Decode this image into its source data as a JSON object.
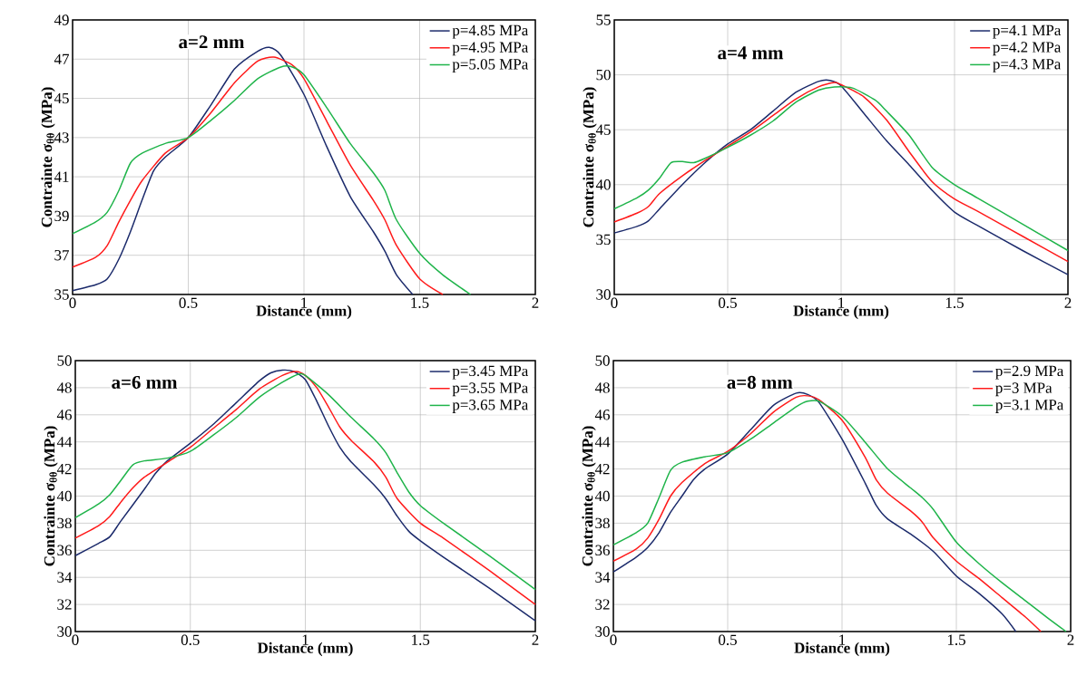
{
  "chart_data": [
    {
      "type": "line",
      "title": "a=2 mm",
      "xlabel": "Distance (mm)",
      "ylabel": "Contrainte σ$_{θθ}$ (MPa)",
      "xlim": [
        0,
        2
      ],
      "ylim": [
        35,
        49
      ],
      "xticks": [
        0,
        0.5,
        1,
        1.5,
        2
      ],
      "yticks": [
        35,
        37,
        39,
        41,
        43,
        45,
        47,
        49
      ],
      "grid": true,
      "legend": "top right",
      "series": [
        {
          "name": "p=4.85 MPa",
          "color": "#1b2a6b",
          "x": [
            0,
            0.1,
            0.15,
            0.2,
            0.25,
            0.3,
            0.35,
            0.4,
            0.5,
            0.6,
            0.7,
            0.8,
            0.85,
            0.9,
            1.0,
            1.1,
            1.2,
            1.3,
            1.35,
            1.4,
            1.47
          ],
          "values": [
            35.2,
            35.5,
            35.8,
            36.8,
            38.2,
            39.8,
            41.3,
            42.0,
            43.0,
            44.7,
            46.5,
            47.4,
            47.6,
            47.2,
            45.2,
            42.5,
            40.0,
            38.2,
            37.2,
            36.0,
            35
          ]
        },
        {
          "name": "p=4.95 MPa",
          "color": "#ff1a1a",
          "x": [
            0,
            0.1,
            0.15,
            0.2,
            0.25,
            0.3,
            0.4,
            0.5,
            0.6,
            0.7,
            0.8,
            0.87,
            0.95,
            1.0,
            1.1,
            1.2,
            1.3,
            1.35,
            1.4,
            1.5,
            1.6
          ],
          "values": [
            36.4,
            36.9,
            37.5,
            38.7,
            39.8,
            40.8,
            42.2,
            43.0,
            44.3,
            45.8,
            46.9,
            47.1,
            46.7,
            46.0,
            43.8,
            41.6,
            39.8,
            38.8,
            37.5,
            35.8,
            35
          ]
        },
        {
          "name": "p=5.05 MPa",
          "color": "#1fb44a",
          "x": [
            0,
            0.1,
            0.15,
            0.2,
            0.25,
            0.3,
            0.4,
            0.5,
            0.6,
            0.7,
            0.8,
            0.9,
            0.95,
            1.0,
            1.1,
            1.2,
            1.3,
            1.35,
            1.4,
            1.5,
            1.6,
            1.72
          ],
          "values": [
            38.1,
            38.7,
            39.2,
            40.3,
            41.7,
            42.2,
            42.7,
            43.0,
            43.9,
            44.9,
            46.0,
            46.6,
            46.6,
            46.2,
            44.5,
            42.7,
            41.2,
            40.3,
            38.8,
            37.1,
            36.0,
            35
          ]
        }
      ]
    },
    {
      "type": "line",
      "title": "a=4 mm",
      "xlabel": "Distance (mm)",
      "ylabel": "Contrainte σ$_{θθ}$ (MPa)",
      "xlim": [
        0,
        2
      ],
      "ylim": [
        30,
        55
      ],
      "xticks": [
        0,
        0.5,
        1,
        1.5,
        2
      ],
      "yticks": [
        30,
        35,
        40,
        45,
        50,
        55
      ],
      "grid": true,
      "legend": "top right",
      "series": [
        {
          "name": "p=4.1 MPa",
          "color": "#1b2a6b",
          "x": [
            0,
            0.1,
            0.15,
            0.2,
            0.3,
            0.4,
            0.5,
            0.6,
            0.7,
            0.8,
            0.9,
            0.95,
            1.0,
            1.1,
            1.2,
            1.3,
            1.4,
            1.5,
            1.6,
            1.8,
            2.0
          ],
          "values": [
            35.6,
            36.2,
            36.7,
            37.8,
            40.0,
            42.0,
            43.7,
            45.0,
            46.7,
            48.4,
            49.4,
            49.5,
            49.0,
            46.5,
            44.0,
            41.8,
            39.5,
            37.5,
            36.3,
            34.0,
            31.8
          ]
        },
        {
          "name": "p=4.2 MPa",
          "color": "#ff1a1a",
          "x": [
            0,
            0.1,
            0.15,
            0.2,
            0.3,
            0.4,
            0.5,
            0.6,
            0.7,
            0.8,
            0.9,
            0.97,
            1.0,
            1.1,
            1.2,
            1.3,
            1.4,
            1.5,
            1.6,
            1.8,
            2.0
          ],
          "values": [
            36.6,
            37.4,
            38.0,
            39.2,
            40.8,
            42.2,
            43.5,
            44.8,
            46.3,
            47.8,
            48.9,
            49.3,
            49.1,
            48.0,
            45.9,
            43.0,
            40.3,
            38.7,
            37.6,
            35.3,
            33.0
          ]
        },
        {
          "name": "p=4.3 MPa",
          "color": "#1fb44a",
          "x": [
            0,
            0.1,
            0.15,
            0.2,
            0.25,
            0.3,
            0.35,
            0.4,
            0.5,
            0.6,
            0.7,
            0.8,
            0.9,
            0.97,
            1.05,
            1.15,
            1.2,
            1.3,
            1.4,
            1.5,
            1.6,
            1.8,
            2.0
          ],
          "values": [
            37.8,
            38.8,
            39.5,
            40.6,
            42.0,
            42.1,
            42.0,
            42.4,
            43.4,
            44.5,
            45.8,
            47.5,
            48.6,
            48.9,
            48.8,
            47.7,
            46.7,
            44.5,
            41.6,
            40.0,
            38.8,
            36.4,
            34.0
          ]
        }
      ]
    },
    {
      "type": "line",
      "title": "a=6 mm",
      "xlabel": "Distance (mm)",
      "ylabel": "Contrainte σ$_{θθ}$ (MPa)",
      "xlim": [
        0,
        2
      ],
      "ylim": [
        30,
        50
      ],
      "xticks": [
        0,
        0.5,
        1,
        1.5,
        2
      ],
      "yticks": [
        30,
        32,
        34,
        36,
        38,
        40,
        42,
        44,
        46,
        48,
        50
      ],
      "grid": true,
      "legend": "top right",
      "series": [
        {
          "name": "p=3.45 MPa",
          "color": "#1b2a6b",
          "x": [
            0,
            0.1,
            0.15,
            0.2,
            0.3,
            0.35,
            0.4,
            0.5,
            0.6,
            0.7,
            0.8,
            0.85,
            0.9,
            0.95,
            1.0,
            1.05,
            1.1,
            1.15,
            1.2,
            1.3,
            1.35,
            1.4,
            1.45,
            1.5,
            1.6,
            1.8,
            2.0
          ],
          "values": [
            35.6,
            36.5,
            37.0,
            38.2,
            40.5,
            41.7,
            42.6,
            43.9,
            45.3,
            46.9,
            48.5,
            49.1,
            49.3,
            49.2,
            48.6,
            47.0,
            45.2,
            43.6,
            42.5,
            40.8,
            39.8,
            38.5,
            37.4,
            36.7,
            35.5,
            33.2,
            30.8
          ]
        },
        {
          "name": "p=3.55 MPa",
          "color": "#ff1a1a",
          "x": [
            0,
            0.1,
            0.15,
            0.2,
            0.25,
            0.3,
            0.4,
            0.5,
            0.6,
            0.7,
            0.8,
            0.9,
            0.96,
            1.0,
            1.05,
            1.1,
            1.15,
            1.2,
            1.3,
            1.35,
            1.4,
            1.5,
            1.6,
            1.8,
            2.0
          ],
          "values": [
            36.9,
            37.8,
            38.5,
            39.6,
            40.6,
            41.4,
            42.5,
            43.6,
            45.0,
            46.4,
            47.9,
            48.9,
            49.2,
            48.9,
            48.0,
            46.6,
            45.1,
            44.1,
            42.5,
            41.4,
            39.8,
            38.0,
            36.9,
            34.5,
            32.0
          ]
        },
        {
          "name": "p=3.65 MPa",
          "color": "#1fb44a",
          "x": [
            0,
            0.1,
            0.15,
            0.2,
            0.25,
            0.3,
            0.4,
            0.5,
            0.6,
            0.7,
            0.8,
            0.9,
            0.97,
            1.0,
            1.1,
            1.2,
            1.3,
            1.35,
            1.4,
            1.45,
            1.5,
            1.6,
            1.8,
            2.0
          ],
          "values": [
            38.4,
            39.4,
            40.1,
            41.2,
            42.3,
            42.6,
            42.8,
            43.3,
            44.5,
            45.8,
            47.3,
            48.4,
            49.0,
            48.9,
            47.5,
            45.8,
            44.2,
            43.2,
            41.7,
            40.3,
            39.3,
            38.0,
            35.6,
            33.1
          ]
        }
      ]
    },
    {
      "type": "line",
      "title": "a=8 mm",
      "xlabel": "Distance (mm)",
      "ylabel": "Contrainte σ$_{θθ}$ (MPa)",
      "xlim": [
        0,
        2
      ],
      "ylim": [
        30,
        50
      ],
      "xticks": [
        0,
        0.5,
        1,
        1.5,
        2
      ],
      "yticks": [
        30,
        32,
        34,
        36,
        38,
        40,
        42,
        44,
        46,
        48,
        50
      ],
      "grid": true,
      "legend": "top right",
      "series": [
        {
          "name": "p=2.9 MPa",
          "color": "#1b2a6b",
          "x": [
            0,
            0.1,
            0.15,
            0.2,
            0.25,
            0.3,
            0.35,
            0.4,
            0.5,
            0.6,
            0.7,
            0.8,
            0.85,
            0.9,
            1.0,
            1.1,
            1.15,
            1.2,
            1.3,
            1.4,
            1.5,
            1.6,
            1.7,
            1.76
          ],
          "values": [
            34.4,
            35.5,
            36.2,
            37.3,
            38.8,
            40.0,
            41.2,
            42.0,
            43.1,
            44.9,
            46.7,
            47.6,
            47.5,
            46.9,
            44.2,
            41.0,
            39.3,
            38.3,
            37.2,
            35.9,
            34.1,
            32.8,
            31.3,
            30
          ]
        },
        {
          "name": "p=3 MPa",
          "color": "#ff1a1a",
          "x": [
            0,
            0.1,
            0.15,
            0.2,
            0.25,
            0.3,
            0.4,
            0.5,
            0.6,
            0.7,
            0.8,
            0.85,
            0.9,
            1.0,
            1.1,
            1.15,
            1.2,
            1.3,
            1.35,
            1.4,
            1.5,
            1.6,
            1.7,
            1.8,
            1.87
          ],
          "values": [
            35.2,
            36.1,
            36.9,
            38.3,
            40.0,
            41.0,
            42.4,
            43.3,
            44.6,
            46.2,
            47.3,
            47.4,
            47.1,
            45.6,
            42.9,
            41.2,
            40.2,
            38.9,
            38.1,
            36.9,
            35.2,
            33.9,
            32.5,
            31.1,
            30
          ]
        },
        {
          "name": "p=3.1 MPa",
          "color": "#1fb44a",
          "x": [
            0,
            0.1,
            0.15,
            0.2,
            0.25,
            0.3,
            0.4,
            0.5,
            0.6,
            0.7,
            0.8,
            0.85,
            0.9,
            1.0,
            1.1,
            1.2,
            1.3,
            1.35,
            1.4,
            1.5,
            1.6,
            1.7,
            1.8,
            1.9,
            1.98
          ],
          "values": [
            36.4,
            37.3,
            38.0,
            39.9,
            41.9,
            42.5,
            42.9,
            43.2,
            44.2,
            45.4,
            46.6,
            47.0,
            47.0,
            45.9,
            44.0,
            42.0,
            40.6,
            39.9,
            39.0,
            36.6,
            35.0,
            33.6,
            32.3,
            31.0,
            30
          ]
        }
      ]
    }
  ]
}
